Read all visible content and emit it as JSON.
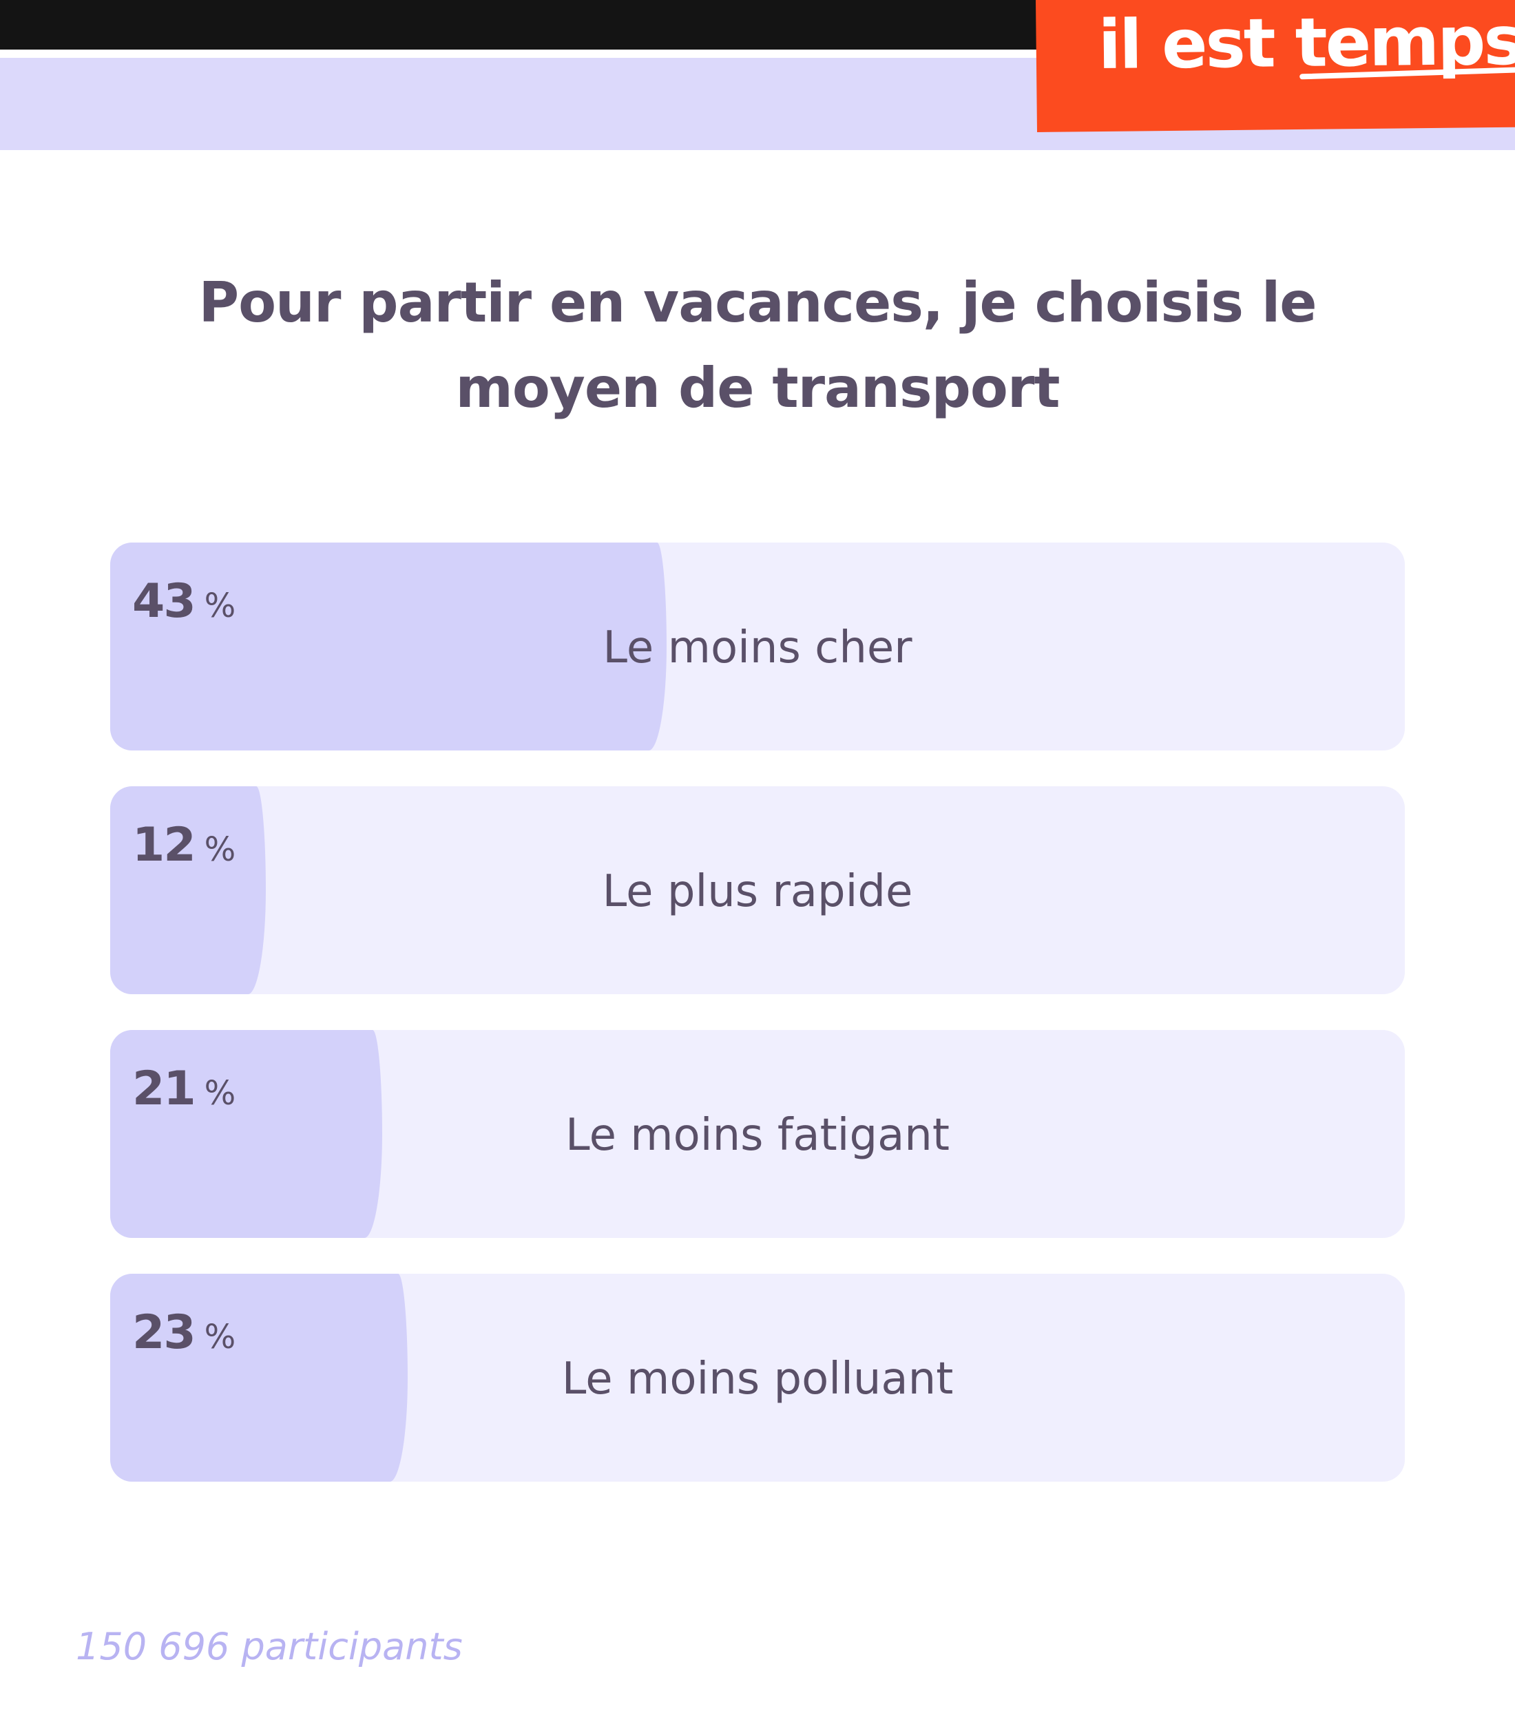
{
  "brand": {
    "text_main": "il est",
    "text_emph": "temps",
    "color": "#fc4b1f"
  },
  "poll": {
    "question": "Pour partir en vacances, je choisis le moyen de transport",
    "options": [
      {
        "percent": 43,
        "percent_sign": "%",
        "label": "Le moins cher"
      },
      {
        "percent": 12,
        "percent_sign": "%",
        "label": "Le plus rapide"
      },
      {
        "percent": 21,
        "percent_sign": "%",
        "label": "Le moins fatigant"
      },
      {
        "percent": 23,
        "percent_sign": "%",
        "label": "Le moins polluant"
      }
    ],
    "participants": "150 696 participants"
  },
  "colors": {
    "top_bar": "#141414",
    "band": "#dcd9fb",
    "option_background": "#f0effe",
    "option_fill": "#d3d1fa",
    "text": "#5a5068",
    "participants_text": "#b8b3f2"
  }
}
